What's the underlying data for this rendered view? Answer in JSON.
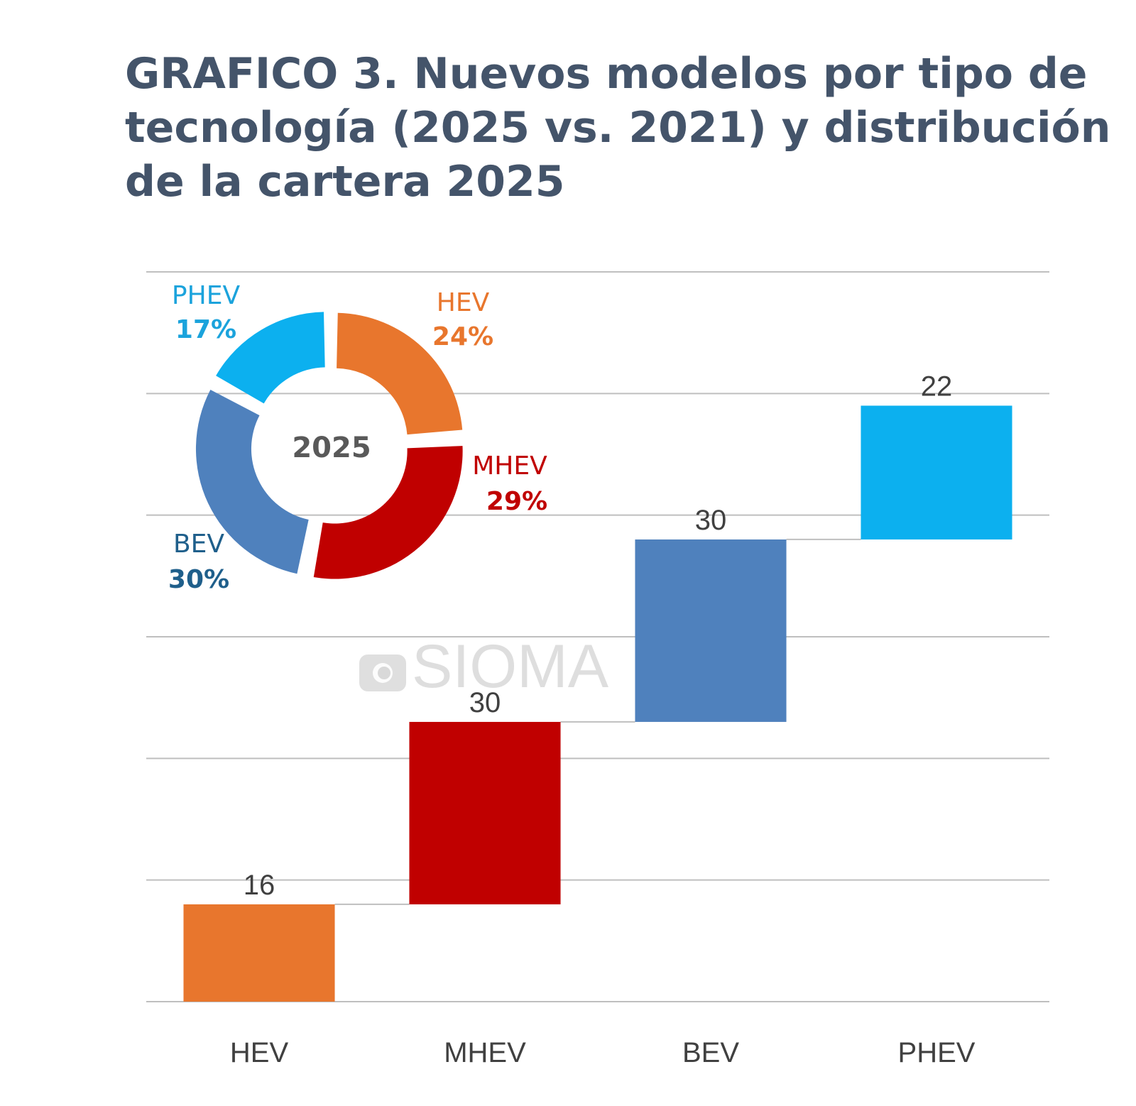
{
  "title": "GRAFICO 3. Nuevos modelos por tipo de tecnología (2025 vs. 2021) y distribución de la cartera 2025",
  "watermark": "SIOMA",
  "chart_data": [
    {
      "type": "bar",
      "subtype": "waterfall",
      "title": "Nuevos modelos por tipo de tecnología (2025 vs. 2021)",
      "xlabel": "",
      "ylabel": "",
      "categories": [
        "HEV",
        "MHEV",
        "BEV",
        "PHEV"
      ],
      "values": [
        16,
        30,
        30,
        22
      ],
      "cumulative_start": [
        0,
        16,
        46,
        76
      ],
      "cumulative_end": [
        16,
        46,
        76,
        98
      ],
      "colors": [
        "#e8762d",
        "#c00000",
        "#4f81bd",
        "#0cb0ef"
      ],
      "ylim": [
        0,
        120
      ],
      "ytick_step": 20,
      "y_axis_labels_shown": false,
      "grid": true,
      "data_labels": [
        "16",
        "30",
        "30",
        "22"
      ]
    },
    {
      "type": "pie",
      "subtype": "donut",
      "title": "Distribución de la cartera 2025",
      "center_label": "2025",
      "slices": [
        {
          "label": "HEV",
          "value": 24,
          "display": "24%",
          "color": "#e8762d",
          "label_color": "#e8762d"
        },
        {
          "label": "MHEV",
          "value": 29,
          "display": "29%",
          "color": "#c00000",
          "label_color": "#c00000"
        },
        {
          "label": "BEV",
          "value": 30,
          "display": "30%",
          "color": "#4f81bd",
          "label_color": "#1f5f8b"
        },
        {
          "label": "PHEV",
          "value": 17,
          "display": "17%",
          "color": "#0cb0ef",
          "label_color": "#1ba3dc"
        }
      ],
      "start": "top",
      "direction": "clockwise"
    }
  ]
}
